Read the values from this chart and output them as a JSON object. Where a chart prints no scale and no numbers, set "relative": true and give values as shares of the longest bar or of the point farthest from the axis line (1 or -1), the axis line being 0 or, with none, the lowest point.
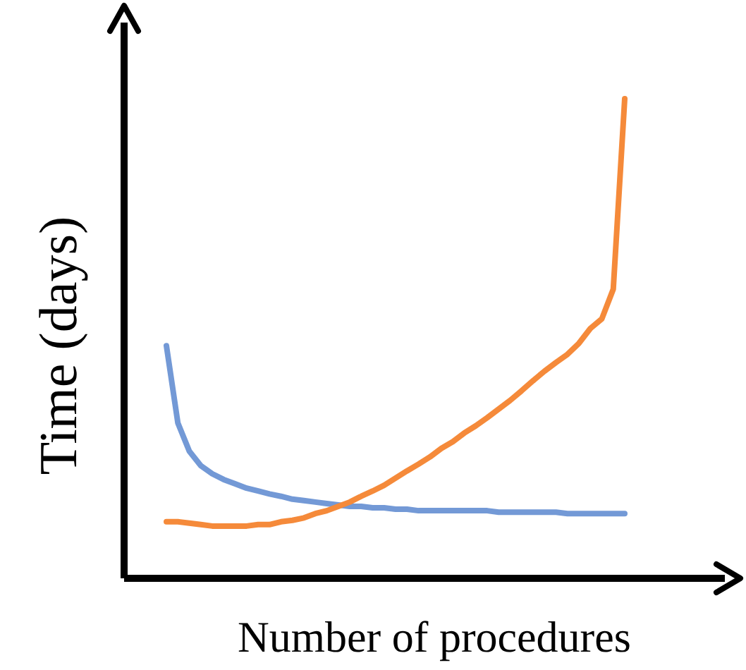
{
  "chart_data": {
    "type": "line",
    "relative": true,
    "xlabel": "Number of procedures",
    "ylabel": "Time (days)",
    "categories": [
      null,
      null,
      null,
      null,
      null,
      null,
      null,
      null,
      null,
      null,
      null,
      null,
      null,
      null,
      null,
      null,
      null,
      null,
      null,
      null,
      null,
      null,
      null,
      null,
      null,
      null,
      null,
      null,
      null,
      null,
      null,
      null,
      null,
      null,
      null,
      null,
      null,
      null,
      null,
      null,
      null
    ],
    "series": [
      {
        "color": "#7399d6",
        "values": [
          0.485,
          0.324,
          0.265,
          0.235,
          0.218,
          0.206,
          0.197,
          0.188,
          0.182,
          0.176,
          0.171,
          0.165,
          0.162,
          0.159,
          0.156,
          0.153,
          0.15,
          0.15,
          0.147,
          0.147,
          0.144,
          0.144,
          0.141,
          0.141,
          0.141,
          0.141,
          0.141,
          0.141,
          0.141,
          0.138,
          0.138,
          0.138,
          0.138,
          0.138,
          0.138,
          0.135,
          0.135,
          0.135,
          0.135,
          0.135,
          0.135
        ]
      },
      {
        "color": "#f58a3a",
        "values": [
          0.118,
          0.118,
          0.115,
          0.112,
          0.109,
          0.109,
          0.109,
          0.109,
          0.112,
          0.112,
          0.118,
          0.121,
          0.126,
          0.135,
          0.141,
          0.15,
          0.159,
          0.171,
          0.182,
          0.194,
          0.209,
          0.224,
          0.238,
          0.253,
          0.271,
          0.285,
          0.303,
          0.318,
          0.335,
          0.353,
          0.371,
          0.391,
          0.412,
          0.432,
          0.45,
          0.467,
          0.49,
          0.521,
          0.541,
          0.603,
          1.0
        ]
      }
    ]
  }
}
